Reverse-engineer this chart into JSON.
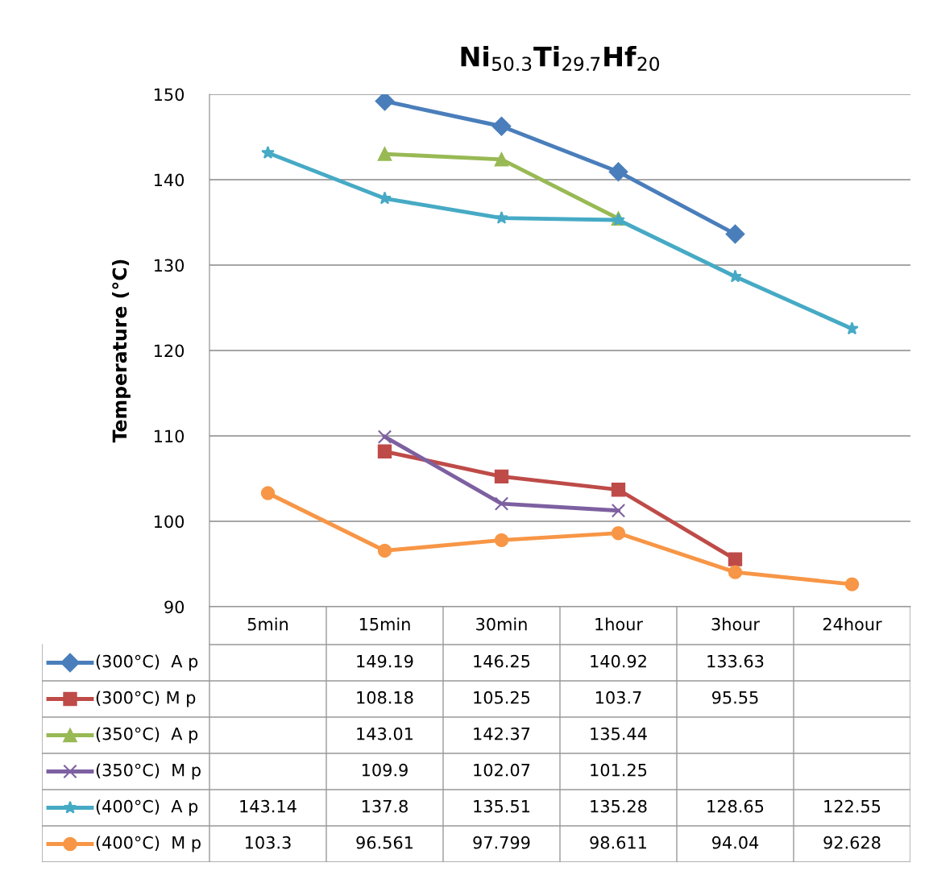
{
  "chart_data": {
    "type": "line",
    "title": "Ni$_{50.3}$Ti$_{29.7}$Hf$_{20}$",
    "ylabel": "Temperature (°C)",
    "categories": [
      "5min",
      "15min",
      "30min",
      "1hour",
      "3hour",
      "24hour"
    ],
    "series": [
      {
        "name": "(300°C)  A p",
        "color": "#4a7ebb",
        "marker": "diamond",
        "values": [
          null,
          149.19,
          146.25,
          140.92,
          133.63,
          null
        ]
      },
      {
        "name": "(300°C) M p",
        "color": "#be4b48",
        "marker": "square",
        "values": [
          null,
          108.18,
          105.25,
          103.7,
          95.55,
          null
        ]
      },
      {
        "name": "(350°C)  A p",
        "color": "#98b954",
        "marker": "triangle",
        "values": [
          null,
          143.01,
          142.37,
          135.44,
          null,
          null
        ]
      },
      {
        "name": "(350°C)  M p",
        "color": "#7d60a0",
        "marker": "cross",
        "values": [
          null,
          109.9,
          102.07,
          101.25,
          null,
          null
        ]
      },
      {
        "name": "(400°C)  A p",
        "color": "#46aac5",
        "marker": "star",
        "values": [
          143.14,
          137.8,
          135.51,
          135.28,
          128.65,
          122.55
        ]
      },
      {
        "name": "(400°C)  M p",
        "color": "#f79646",
        "marker": "circle",
        "values": [
          103.3,
          96.561,
          97.799,
          98.611,
          94.04,
          92.628
        ]
      }
    ],
    "ylim": [
      90,
      150
    ],
    "yticks": [
      90,
      100,
      110,
      120,
      130,
      140,
      150
    ],
    "grid": "y",
    "legend": "bottom",
    "data_labels": true,
    "line_style": "solid"
  }
}
